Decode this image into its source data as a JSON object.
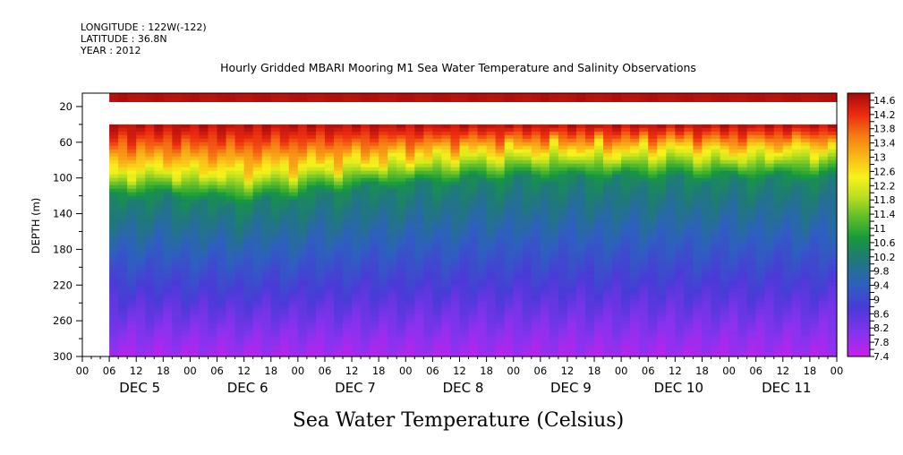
{
  "meta": {
    "longitude": "LONGITUDE : 122W(-122)",
    "latitude": "LATITUDE : 36.8N",
    "year": "YEAR : 2012"
  },
  "chart_data": {
    "type": "heatmap",
    "title": "Hourly Gridded MBARI Mooring M1 Sea Water Temperature and Salinity Observations",
    "subtitle": "Sea Water Temperature (Celsius)",
    "ylabel": "DEPTH (m)",
    "y_axis": {
      "range": [
        300,
        5
      ],
      "inverted": true,
      "ticks": [
        20,
        60,
        100,
        140,
        180,
        220,
        260,
        300
      ]
    },
    "x_axis": {
      "start_hour": 0,
      "end_hour": 168,
      "hour_labels": [
        "00",
        "06",
        "12",
        "18",
        "00",
        "06",
        "12",
        "18",
        "00",
        "06",
        "12",
        "18",
        "00",
        "06",
        "12",
        "18",
        "00",
        "06",
        "12",
        "18",
        "00",
        "06",
        "12",
        "18",
        "00",
        "06",
        "12",
        "18",
        "00"
      ],
      "day_labels": [
        "DEC 5",
        "DEC 6",
        "DEC 7",
        "DEC 8",
        "DEC 9",
        "DEC 10",
        "DEC 11"
      ],
      "data_start": "DEC 5 06"
    },
    "data_depth_ranges_m": {
      "surface_band": [
        5,
        15
      ],
      "gap": [
        15,
        40
      ],
      "main": [
        40,
        300
      ]
    },
    "colorbar": {
      "labels": [
        "14.6",
        "14.2",
        "13.8",
        "13.4",
        "13",
        "12.6",
        "12.2",
        "11.8",
        "11.4",
        "11",
        "10.6",
        "10.2",
        "9.8",
        "9.4",
        "9",
        "8.6",
        "8.2",
        "7.8",
        "7.4"
      ],
      "min": 7.4,
      "max": 14.8,
      "step": 0.2
    },
    "profile_approx": {
      "hours_from_dec5_00": [
        6,
        12,
        24,
        36,
        48,
        60,
        72,
        84,
        96,
        108,
        120,
        132,
        144,
        156,
        168
      ],
      "depth_12C": [
        98,
        90,
        92,
        95,
        90,
        85,
        80,
        74,
        72,
        70,
        72,
        68,
        74,
        70,
        68
      ],
      "depth_10C": [
        125,
        118,
        122,
        128,
        120,
        112,
        108,
        104,
        100,
        100,
        100,
        100,
        100,
        100,
        100
      ]
    }
  }
}
